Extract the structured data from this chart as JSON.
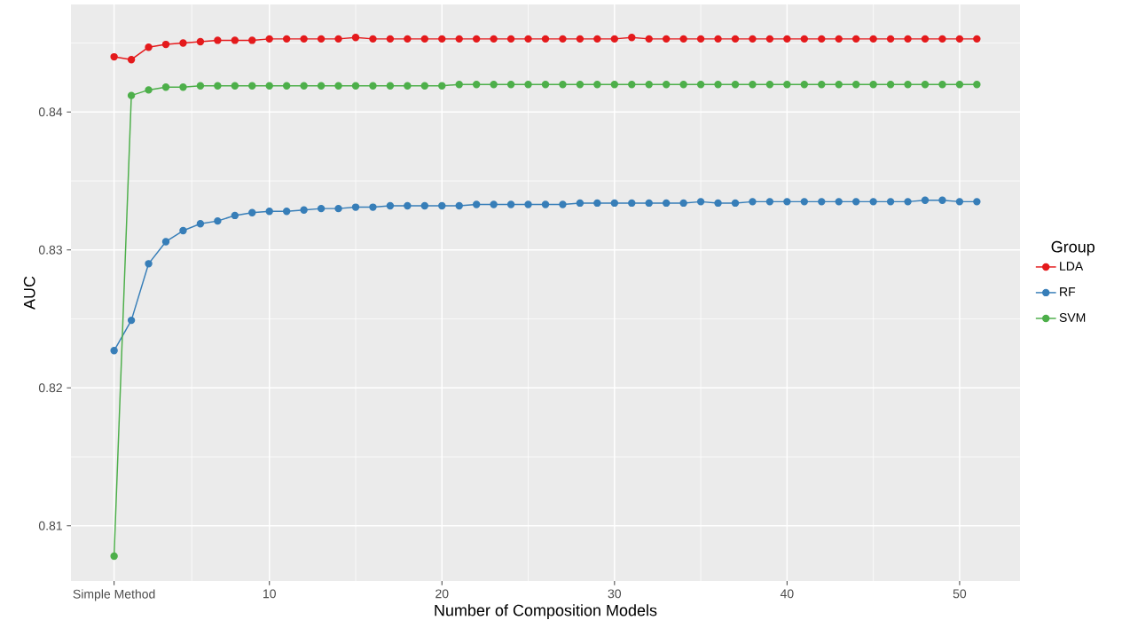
{
  "chart_data": {
    "type": "line",
    "xlabel": "Number of Composition Models",
    "ylabel": "AUC",
    "legend_title": "Group",
    "x": [
      1,
      2,
      3,
      4,
      5,
      6,
      7,
      8,
      9,
      10,
      11,
      12,
      13,
      14,
      15,
      16,
      17,
      18,
      19,
      20,
      21,
      22,
      23,
      24,
      25,
      26,
      27,
      28,
      29,
      30,
      31,
      32,
      33,
      34,
      35,
      36,
      37,
      38,
      39,
      40,
      41,
      42,
      43,
      44,
      45,
      46,
      47,
      48,
      49,
      50,
      51
    ],
    "series": [
      {
        "name": "LDA",
        "color": "#e41a1c",
        "values": [
          0.844,
          0.8438,
          0.8447,
          0.8449,
          0.845,
          0.8451,
          0.8452,
          0.8452,
          0.8452,
          0.8453,
          0.8453,
          0.8453,
          0.8453,
          0.8453,
          0.8454,
          0.8453,
          0.8453,
          0.8453,
          0.8453,
          0.8453,
          0.8453,
          0.8453,
          0.8453,
          0.8453,
          0.8453,
          0.8453,
          0.8453,
          0.8453,
          0.8453,
          0.8453,
          0.8454,
          0.8453,
          0.8453,
          0.8453,
          0.8453,
          0.8453,
          0.8453,
          0.8453,
          0.8453,
          0.8453,
          0.8453,
          0.8453,
          0.8453,
          0.8453,
          0.8453,
          0.8453,
          0.8453,
          0.8453,
          0.8453,
          0.8453,
          0.8453
        ]
      },
      {
        "name": "RF",
        "color": "#377eb8",
        "values": [
          0.8227,
          0.8249,
          0.829,
          0.8306,
          0.8314,
          0.8319,
          0.8321,
          0.8325,
          0.8327,
          0.8328,
          0.8328,
          0.8329,
          0.833,
          0.833,
          0.8331,
          0.8331,
          0.8332,
          0.8332,
          0.8332,
          0.8332,
          0.8332,
          0.8333,
          0.8333,
          0.8333,
          0.8333,
          0.8333,
          0.8333,
          0.8334,
          0.8334,
          0.8334,
          0.8334,
          0.8334,
          0.8334,
          0.8334,
          0.8335,
          0.8334,
          0.8334,
          0.8335,
          0.8335,
          0.8335,
          0.8335,
          0.8335,
          0.8335,
          0.8335,
          0.8335,
          0.8335,
          0.8335,
          0.8336,
          0.8336,
          0.8335,
          0.8335
        ]
      },
      {
        "name": "SVM",
        "color": "#4daf4a",
        "values": [
          0.8078,
          0.8412,
          0.8416,
          0.8418,
          0.8418,
          0.8419,
          0.8419,
          0.8419,
          0.8419,
          0.8419,
          0.8419,
          0.8419,
          0.8419,
          0.8419,
          0.8419,
          0.8419,
          0.8419,
          0.8419,
          0.8419,
          0.8419,
          0.842,
          0.842,
          0.842,
          0.842,
          0.842,
          0.842,
          0.842,
          0.842,
          0.842,
          0.842,
          0.842,
          0.842,
          0.842,
          0.842,
          0.842,
          0.842,
          0.842,
          0.842,
          0.842,
          0.842,
          0.842,
          0.842,
          0.842,
          0.842,
          0.842,
          0.842,
          0.842,
          0.842,
          0.842,
          0.842,
          0.842
        ]
      }
    ],
    "xlim": [
      -1.5,
      53.5
    ],
    "ylim": [
      0.806,
      0.8478
    ],
    "xticks": [
      {
        "value": 1,
        "label": "Simple Method"
      },
      10,
      20,
      30,
      40,
      50
    ],
    "yticks": [
      0.81,
      0.82,
      0.83,
      0.84
    ],
    "grid": true,
    "legend": "right",
    "marker": "circle",
    "line_style": "solid"
  }
}
